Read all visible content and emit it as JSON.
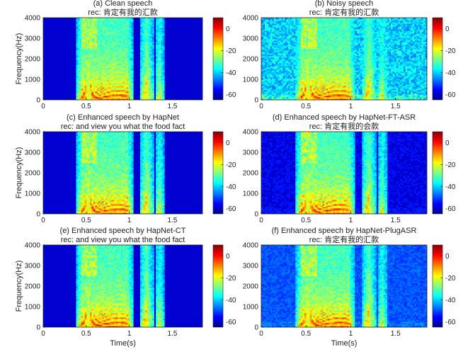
{
  "figure": {
    "colormap": "jet",
    "background": "#ffffff",
    "axes_color": "#222222"
  },
  "chart_data": [
    {
      "type": "heatmap",
      "title": "(a) Clean speech",
      "subtitle": "rec: 肯定有我的汇款",
      "xlabel": "",
      "ylabel": "Frequency(Hz)",
      "xlim": [
        0,
        1.85
      ],
      "ylim": [
        0,
        4000
      ],
      "x_ticks": [
        0,
        0.5,
        1,
        1.5
      ],
      "y_ticks": [
        0,
        1000,
        2000,
        3000,
        4000
      ],
      "colorbar": {
        "range": [
          -65,
          10
        ],
        "ticks": [
          0,
          -20,
          -40,
          -60
        ]
      },
      "speech_segments": [
        [
          0.38,
          1.05
        ],
        [
          1.12,
          1.28
        ],
        [
          1.3,
          1.4
        ]
      ],
      "noise_level": 0.0
    },
    {
      "type": "heatmap",
      "title": "(b) Noisy speech",
      "subtitle": "rec: 肯定有我的汇款",
      "xlabel": "",
      "ylabel": "",
      "xlim": [
        0,
        1.85
      ],
      "ylim": [
        0,
        4000
      ],
      "x_ticks": [
        0,
        0.5,
        1,
        1.5
      ],
      "y_ticks": [
        0,
        1000,
        2000,
        3000,
        4000
      ],
      "colorbar": {
        "range": [
          -65,
          10
        ],
        "ticks": [
          0,
          -20,
          -40,
          -60
        ]
      },
      "speech_segments": [
        [
          0.38,
          1.05
        ],
        [
          1.12,
          1.28
        ],
        [
          1.3,
          1.4
        ]
      ],
      "noise_level": 0.55
    },
    {
      "type": "heatmap",
      "title": "(c) Enhanced speech by HapNet",
      "subtitle": "rec: and view you what the food fact",
      "xlabel": "",
      "ylabel": "Frequency(Hz)",
      "xlim": [
        0,
        1.85
      ],
      "ylim": [
        0,
        4000
      ],
      "x_ticks": [
        0,
        0.5,
        1,
        1.5
      ],
      "y_ticks": [
        0,
        1000,
        2000,
        3000,
        4000
      ],
      "colorbar": {
        "range": [
          -65,
          10
        ],
        "ticks": [
          0,
          -20,
          -40,
          -60
        ]
      },
      "speech_segments": [
        [
          0.38,
          1.05
        ],
        [
          1.12,
          1.28
        ],
        [
          1.3,
          1.4
        ]
      ],
      "noise_level": 0.05
    },
    {
      "type": "heatmap",
      "title": "(d) Enhanced speech by HapNet-FT-ASR",
      "subtitle": "rec: 肯定有我的会款",
      "xlabel": "",
      "ylabel": "",
      "xlim": [
        0,
        1.85
      ],
      "ylim": [
        0,
        4000
      ],
      "x_ticks": [
        0,
        0.5,
        1,
        1.5
      ],
      "y_ticks": [
        0,
        1000,
        2000,
        3000,
        4000
      ],
      "colorbar": {
        "range": [
          -65,
          10
        ],
        "ticks": [
          0,
          -20,
          -40,
          -60
        ]
      },
      "speech_segments": [
        [
          0.38,
          1.05
        ],
        [
          1.12,
          1.28
        ],
        [
          1.3,
          1.4
        ]
      ],
      "noise_level": 0.08
    },
    {
      "type": "heatmap",
      "title": "(e) Enhanced speech by HapNet-CT",
      "subtitle": "rec: and view you what the food fact",
      "xlabel": "Time(s)",
      "ylabel": "Frequency(Hz)",
      "xlim": [
        0,
        1.85
      ],
      "ylim": [
        0,
        4000
      ],
      "x_ticks": [
        0,
        0.5,
        1,
        1.5
      ],
      "y_ticks": [
        0,
        1000,
        2000,
        3000,
        4000
      ],
      "colorbar": {
        "range": [
          -65,
          10
        ],
        "ticks": [
          0,
          -20,
          -40,
          -60
        ]
      },
      "speech_segments": [
        [
          0.38,
          1.05
        ],
        [
          1.12,
          1.28
        ],
        [
          1.3,
          1.4
        ]
      ],
      "noise_level": 0.05
    },
    {
      "type": "heatmap",
      "title": "(f) Enhanced speech by HapNet-PlugASR",
      "subtitle": "rec: 肯定有我的汇款",
      "xlabel": "Time(s)",
      "ylabel": "",
      "xlim": [
        0,
        1.85
      ],
      "ylim": [
        0,
        4000
      ],
      "x_ticks": [
        0,
        0.5,
        1,
        1.5
      ],
      "y_ticks": [
        0,
        1000,
        2000,
        3000,
        4000
      ],
      "colorbar": {
        "range": [
          -65,
          10
        ],
        "ticks": [
          0,
          -20,
          -40,
          -60
        ]
      },
      "speech_segments": [
        [
          0.38,
          1.05
        ],
        [
          1.12,
          1.28
        ],
        [
          1.3,
          1.4
        ]
      ],
      "noise_level": 0.25
    }
  ]
}
